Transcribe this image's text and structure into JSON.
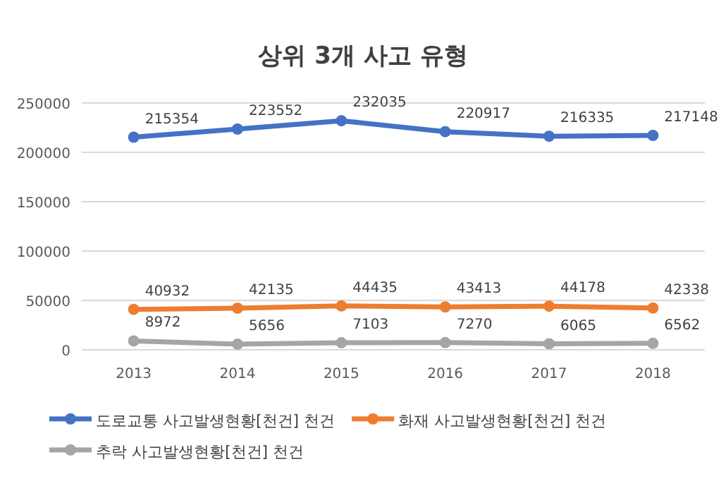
{
  "chart_data": {
    "type": "line",
    "title": "상위 3개 사고 유형",
    "categories": [
      "2013",
      "2014",
      "2015",
      "2016",
      "2017",
      "2018"
    ],
    "series": [
      {
        "name": "도로교통 사고발생현황[천건] 천건",
        "color": "#4472c4",
        "values": [
          215354,
          223552,
          232035,
          220917,
          216335,
          217148
        ]
      },
      {
        "name": "화재 사고발생현황[천건] 천건",
        "color": "#ed7d31",
        "values": [
          40932,
          42135,
          44435,
          43413,
          44178,
          42338
        ]
      },
      {
        "name": "추락 사고발생현황[천건] 천건",
        "color": "#a5a5a5",
        "values": [
          8972,
          5656,
          7103,
          7270,
          6065,
          6562
        ]
      }
    ],
    "ylim": [
      0,
      250000
    ],
    "yticks": [
      0,
      50000,
      100000,
      150000,
      200000,
      250000
    ],
    "grid": "y",
    "legend": "bottom",
    "marker": "circle",
    "line_style": "solid",
    "data_labels": true
  }
}
